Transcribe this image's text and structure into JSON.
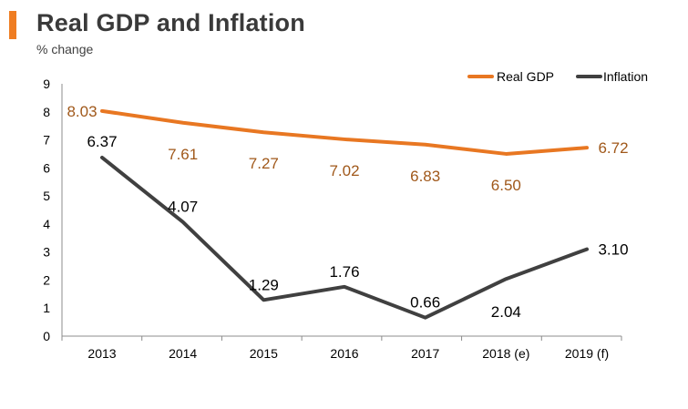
{
  "header": {
    "title": "Real GDP and Inflation",
    "subtitle": "% change"
  },
  "colors": {
    "accent": "#ef7d22",
    "gdp_line": "#e87722",
    "gdp_label": "#a0581a",
    "inflation_line": "#404040",
    "inflation_label": "#000000",
    "axis": "#8c8c8c"
  },
  "chart_data": {
    "type": "line",
    "title": "Real GDP and Inflation",
    "ylabel": "% change",
    "xlabel": "",
    "categories": [
      "2013",
      "2014",
      "2015",
      "2016",
      "2017",
      "2018 (e)",
      "2019 (f)"
    ],
    "ylim": [
      0,
      9
    ],
    "yticks": [
      0,
      1,
      2,
      3,
      4,
      5,
      6,
      7,
      8,
      9
    ],
    "grid": false,
    "legend": "top-right",
    "series": [
      {
        "name": "Real GDP",
        "values": [
          8.03,
          7.61,
          7.27,
          7.02,
          6.83,
          6.5,
          6.72
        ],
        "labels": [
          "8.03",
          "7.61",
          "7.27",
          "7.02",
          "6.83",
          "6.50",
          "6.72"
        ]
      },
      {
        "name": "Inflation",
        "values": [
          6.37,
          4.07,
          1.29,
          1.76,
          0.66,
          2.04,
          3.1
        ],
        "labels": [
          "6.37",
          "4.07",
          "1.29",
          "1.76",
          "0.66",
          "2.04",
          "3.10"
        ]
      }
    ]
  }
}
